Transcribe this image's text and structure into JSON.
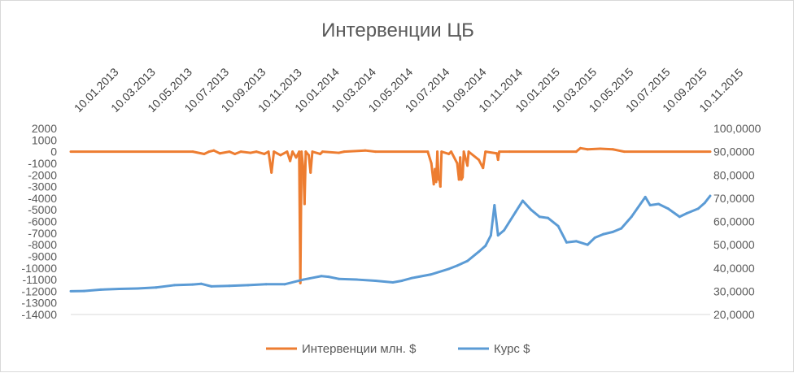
{
  "chart_data": {
    "type": "line",
    "title": "Интервенции ЦБ",
    "date_tick_labels": [
      "10.01.2013",
      "10.03.2013",
      "10.05.2013",
      "10.07.2013",
      "10.09.2013",
      "10.11.2013",
      "10.01.2014",
      "10.03.2014",
      "10.05.2014",
      "10.07.2014",
      "10.09.2014",
      "10.11.2014",
      "10.01.2015",
      "10.03.2015",
      "10.05.2015",
      "10.07.2015",
      "10.09.2015",
      "10.11.2015"
    ],
    "x_range": [
      "2013-01-10",
      "2015-12-10"
    ],
    "y_left": {
      "ylim": [
        -14000,
        2000
      ],
      "ticks": [
        2000,
        1000,
        0,
        -1000,
        -2000,
        -3000,
        -4000,
        -5000,
        -6000,
        -7000,
        -8000,
        -9000,
        -10000,
        -11000,
        -12000,
        -13000,
        -14000
      ],
      "tick_labels": [
        "2000",
        "1000",
        "0",
        "-1000",
        "-2000",
        "-3000",
        "-4000",
        "-5000",
        "-6000",
        "-7000",
        "-8000",
        "-9000",
        "-10000",
        "-11000",
        "-12000",
        "-13000",
        "-14000"
      ]
    },
    "y_right": {
      "ylim": [
        20,
        100
      ],
      "ticks": [
        100,
        90,
        80,
        70,
        60,
        50,
        40,
        30,
        20
      ],
      "tick_labels": [
        "100,0000",
        "90,0000",
        "80,0000",
        "70,0000",
        "60,0000",
        "50,0000",
        "40,0000",
        "30,0000",
        "20,0000"
      ]
    },
    "grid": false,
    "legend_position": "bottom",
    "series": [
      {
        "name": "Интервенции млн. $",
        "axis": "left",
        "color": "#ed7d31",
        "points": [
          [
            "2013-01-10",
            0
          ],
          [
            "2013-08-01",
            0
          ],
          [
            "2013-08-20",
            -200
          ],
          [
            "2013-08-28",
            0
          ],
          [
            "2013-09-05",
            100
          ],
          [
            "2013-09-15",
            -150
          ],
          [
            "2013-10-01",
            0
          ],
          [
            "2013-10-10",
            -200
          ],
          [
            "2013-10-20",
            0
          ],
          [
            "2013-11-05",
            -100
          ],
          [
            "2013-11-15",
            0
          ],
          [
            "2013-11-28",
            -200
          ],
          [
            "2013-12-05",
            0
          ],
          [
            "2013-12-10",
            -1800
          ],
          [
            "2013-12-14",
            0
          ],
          [
            "2013-12-25",
            -300
          ],
          [
            "2014-01-05",
            0
          ],
          [
            "2014-01-10",
            -800
          ],
          [
            "2014-01-14",
            0
          ],
          [
            "2014-01-20",
            -500
          ],
          [
            "2014-01-25",
            0
          ],
          [
            "2014-01-27",
            -11300
          ],
          [
            "2014-01-29",
            0
          ],
          [
            "2014-02-01",
            -1500
          ],
          [
            "2014-02-03",
            -4500
          ],
          [
            "2014-02-05",
            0
          ],
          [
            "2014-02-10",
            -300
          ],
          [
            "2014-02-13",
            -1800
          ],
          [
            "2014-02-16",
            0
          ],
          [
            "2014-03-01",
            -200
          ],
          [
            "2014-03-05",
            0
          ],
          [
            "2014-04-01",
            -100
          ],
          [
            "2014-04-10",
            0
          ],
          [
            "2014-05-15",
            100
          ],
          [
            "2014-06-01",
            0
          ],
          [
            "2014-08-27",
            0
          ],
          [
            "2014-09-02",
            -1000
          ],
          [
            "2014-09-06",
            -2800
          ],
          [
            "2014-09-08",
            -1500
          ],
          [
            "2014-09-10",
            -2600
          ],
          [
            "2014-09-12",
            0
          ],
          [
            "2014-09-14",
            -2400
          ],
          [
            "2014-09-15",
            -2200
          ],
          [
            "2014-09-17",
            -3000
          ],
          [
            "2014-09-19",
            0
          ],
          [
            "2014-10-01",
            -200
          ],
          [
            "2014-10-05",
            0
          ],
          [
            "2014-10-15",
            -1000
          ],
          [
            "2014-10-18",
            -2400
          ],
          [
            "2014-10-20",
            -500
          ],
          [
            "2014-10-22",
            -2400
          ],
          [
            "2014-10-24",
            -2200
          ],
          [
            "2014-10-26",
            0
          ],
          [
            "2014-11-01",
            -1200
          ],
          [
            "2014-11-03",
            0
          ],
          [
            "2014-11-20",
            -700
          ],
          [
            "2014-11-27",
            -1400
          ],
          [
            "2014-12-01",
            0
          ],
          [
            "2014-12-20",
            -150
          ],
          [
            "2014-12-22",
            -700
          ],
          [
            "2014-12-24",
            0
          ],
          [
            "2015-01-10",
            0
          ],
          [
            "2015-05-01",
            0
          ],
          [
            "2015-05-08",
            300
          ],
          [
            "2015-05-20",
            200
          ],
          [
            "2015-06-10",
            250
          ],
          [
            "2015-07-01",
            200
          ],
          [
            "2015-07-20",
            0
          ],
          [
            "2015-12-10",
            0
          ]
        ]
      },
      {
        "name": "Курс $",
        "axis": "right",
        "color": "#5b9bd5",
        "points": [
          [
            "2013-01-10",
            30.0
          ],
          [
            "2013-02-01",
            30.1
          ],
          [
            "2013-03-01",
            30.7
          ],
          [
            "2013-04-01",
            31.0
          ],
          [
            "2013-05-01",
            31.2
          ],
          [
            "2013-06-01",
            31.6
          ],
          [
            "2013-07-01",
            32.6
          ],
          [
            "2013-08-01",
            32.9
          ],
          [
            "2013-08-15",
            33.2
          ],
          [
            "2013-09-01",
            32.1
          ],
          [
            "2013-10-01",
            32.3
          ],
          [
            "2013-11-01",
            32.6
          ],
          [
            "2013-12-01",
            33.0
          ],
          [
            "2014-01-01",
            33.0
          ],
          [
            "2014-02-01",
            35.0
          ],
          [
            "2014-03-03",
            36.5
          ],
          [
            "2014-03-15",
            36.2
          ],
          [
            "2014-04-01",
            35.3
          ],
          [
            "2014-05-01",
            35.0
          ],
          [
            "2014-06-01",
            34.5
          ],
          [
            "2014-06-30",
            33.8
          ],
          [
            "2014-07-15",
            34.5
          ],
          [
            "2014-08-01",
            35.7
          ],
          [
            "2014-09-01",
            37.2
          ],
          [
            "2014-10-01",
            39.6
          ],
          [
            "2014-10-15",
            41.0
          ],
          [
            "2014-11-01",
            43.0
          ],
          [
            "2014-11-20",
            47.0
          ],
          [
            "2014-12-01",
            49.5
          ],
          [
            "2014-12-10",
            54.0
          ],
          [
            "2014-12-16",
            67.0
          ],
          [
            "2014-12-22",
            54.0
          ],
          [
            "2015-01-01",
            56.2
          ],
          [
            "2015-01-20",
            64.0
          ],
          [
            "2015-02-01",
            68.9
          ],
          [
            "2015-02-15",
            65.0
          ],
          [
            "2015-03-01",
            62.0
          ],
          [
            "2015-03-15",
            61.5
          ],
          [
            "2015-04-01",
            58.0
          ],
          [
            "2015-04-15",
            51.0
          ],
          [
            "2015-05-01",
            51.5
          ],
          [
            "2015-05-20",
            50.0
          ],
          [
            "2015-06-01",
            53.0
          ],
          [
            "2015-06-15",
            54.5
          ],
          [
            "2015-07-01",
            55.5
          ],
          [
            "2015-07-15",
            57.0
          ],
          [
            "2015-08-01",
            62.0
          ],
          [
            "2015-08-24",
            70.5
          ],
          [
            "2015-09-01",
            67.0
          ],
          [
            "2015-09-15",
            67.5
          ],
          [
            "2015-10-01",
            65.5
          ],
          [
            "2015-10-20",
            62.0
          ],
          [
            "2015-11-01",
            63.5
          ],
          [
            "2015-11-20",
            65.5
          ],
          [
            "2015-12-01",
            68.0
          ],
          [
            "2015-12-10",
            71.0
          ]
        ]
      }
    ]
  }
}
